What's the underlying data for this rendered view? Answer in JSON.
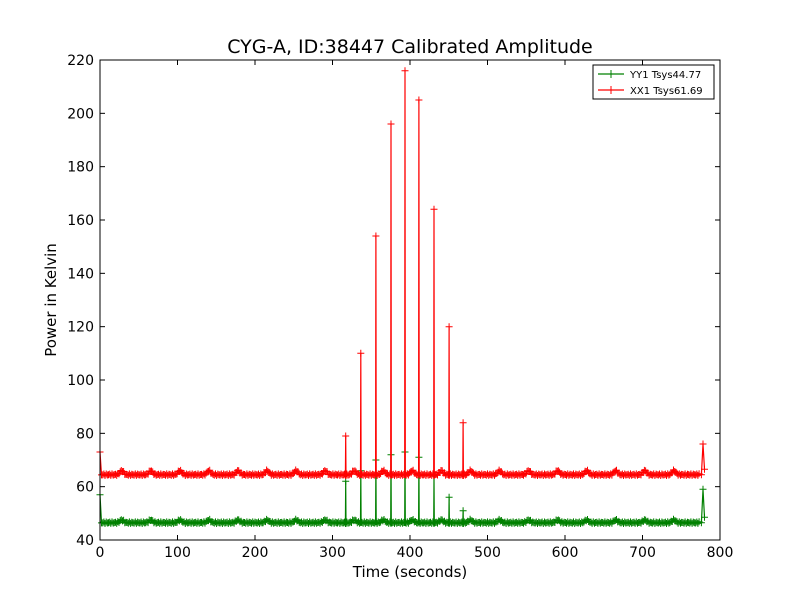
{
  "chart_data": {
    "type": "line",
    "title": "CYG-A, ID:38447 Calibrated Amplitude",
    "xlabel": "Time (seconds)",
    "ylabel": "Power in Kelvin",
    "xlim": [
      0,
      800
    ],
    "ylim": [
      40,
      220
    ],
    "xticks": [
      0,
      100,
      200,
      300,
      400,
      500,
      600,
      700,
      800
    ],
    "yticks": [
      40,
      60,
      80,
      100,
      120,
      140,
      160,
      180,
      200,
      220
    ],
    "grid": false,
    "legend_position": "top-right",
    "marker": "+",
    "series": [
      {
        "name": "YY1 Tsys44.77",
        "color": "#008000",
        "baseline": 46.5,
        "ripple_amplitude": 1.0,
        "ripple_period_s": 37.5,
        "start_spike": [
          0,
          57
        ],
        "end_spike": [
          778,
          59
        ],
        "spikes": [
          [
            317,
            62
          ],
          [
            337,
            66
          ],
          [
            356,
            70
          ],
          [
            375,
            72
          ],
          [
            394,
            73
          ],
          [
            412,
            71
          ],
          [
            431,
            64
          ],
          [
            450,
            56
          ],
          [
            469,
            51
          ]
        ],
        "end_time": 780
      },
      {
        "name": "XX1 Tsys61.69",
        "color": "#ff0000",
        "baseline": 64.5,
        "ripple_amplitude": 1.5,
        "ripple_period_s": 37.5,
        "start_spike": [
          0,
          73
        ],
        "end_spike": [
          778,
          76
        ],
        "spikes": [
          [
            317,
            79
          ],
          [
            337,
            110
          ],
          [
            356,
            154
          ],
          [
            375,
            196
          ],
          [
            394,
            216
          ],
          [
            412,
            205
          ],
          [
            431,
            164
          ],
          [
            450,
            120
          ],
          [
            469,
            84
          ]
        ],
        "end_time": 780
      }
    ]
  }
}
